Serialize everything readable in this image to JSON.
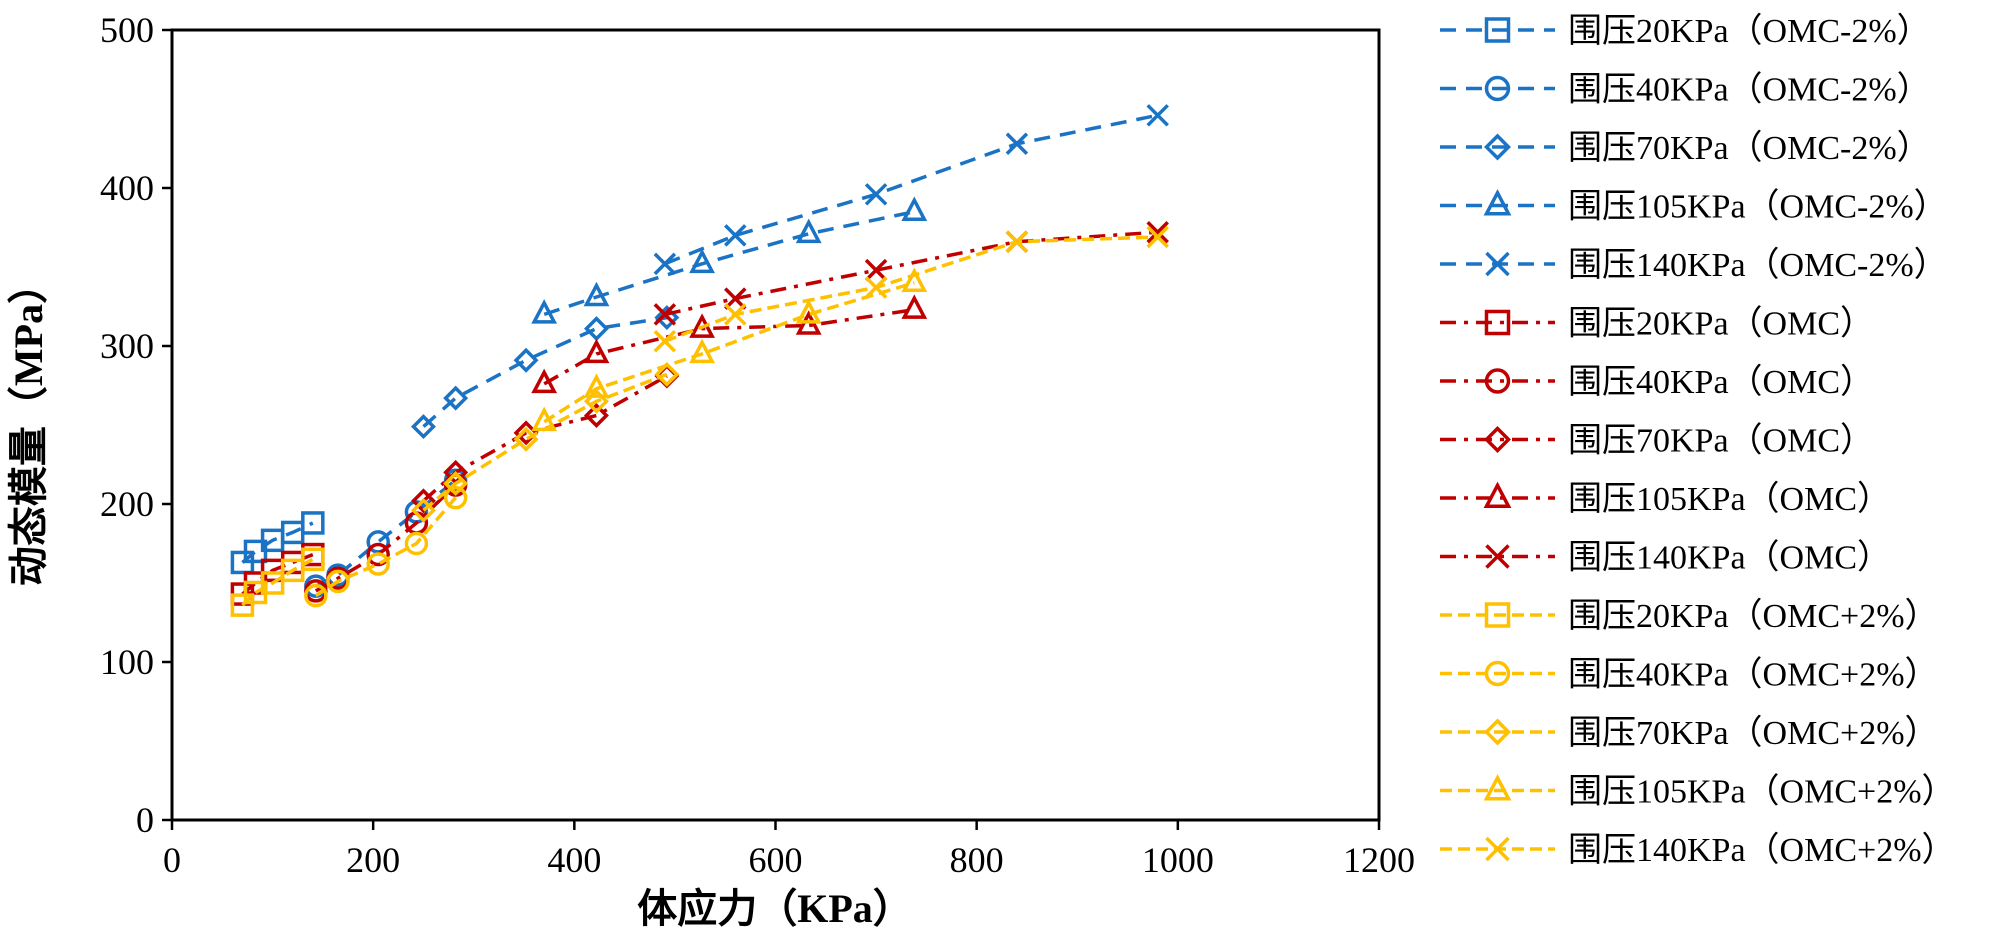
{
  "chart_data": {
    "type": "line",
    "title": "",
    "xlabel": "体应力（KPa）",
    "ylabel": "动态模量（MPa）",
    "xlim": [
      0,
      1200
    ],
    "ylim": [
      0,
      500
    ],
    "xticks": [
      "0",
      "200",
      "400",
      "600",
      "800",
      "1000",
      "1200"
    ],
    "yticks": [
      "0",
      "100",
      "200",
      "300",
      "400",
      "500"
    ],
    "legend_position": "right",
    "colors": {
      "OMC-2%": "#1a73c4",
      "OMC": "#c00000",
      "OMC+2%": "#ffc000"
    },
    "series": [
      {
        "name": "围压20KPa（OMC-2%）",
        "group": "OMC-2%",
        "marker": "square",
        "x": [
          70,
          83,
          100,
          120,
          140
        ],
        "y": [
          163,
          170,
          177,
          182,
          188
        ]
      },
      {
        "name": "围压40KPa（OMC-2%）",
        "group": "OMC-2%",
        "marker": "circle",
        "x": [
          143,
          165,
          205,
          243,
          282
        ],
        "y": [
          148,
          155,
          176,
          195,
          215
        ]
      },
      {
        "name": "围压70KPa（OMC-2%）",
        "group": "OMC-2%",
        "marker": "diamond",
        "x": [
          250,
          282,
          352,
          422,
          492
        ],
        "y": [
          249,
          267,
          291,
          311,
          318
        ]
      },
      {
        "name": "围压105KPa（OMC-2%）",
        "group": "OMC-2%",
        "marker": "triangle",
        "x": [
          370,
          422,
          527,
          633,
          738
        ],
        "y": [
          320,
          331,
          352,
          371,
          385
        ]
      },
      {
        "name": "围压140KPa（OMC-2%）",
        "group": "OMC-2%",
        "marker": "x",
        "x": [
          490,
          560,
          700,
          840,
          980
        ],
        "y": [
          352,
          370,
          396,
          428,
          446
        ]
      },
      {
        "name": "围压20KPa（OMC）",
        "group": "OMC",
        "marker": "square",
        "x": [
          70,
          83,
          100,
          120,
          140
        ],
        "y": [
          143,
          150,
          158,
          163,
          168
        ]
      },
      {
        "name": "围压40KPa（OMC）",
        "group": "OMC",
        "marker": "circle",
        "x": [
          143,
          165,
          205,
          243,
          282
        ],
        "y": [
          145,
          153,
          168,
          188,
          212
        ]
      },
      {
        "name": "围压70KPa（OMC）",
        "group": "OMC",
        "marker": "diamond",
        "x": [
          250,
          282,
          352,
          422,
          492
        ],
        "y": [
          202,
          220,
          245,
          256,
          281
        ]
      },
      {
        "name": "围压105KPa（OMC）",
        "group": "OMC",
        "marker": "triangle",
        "x": [
          370,
          422,
          527,
          633,
          738
        ],
        "y": [
          276,
          295,
          311,
          313,
          323
        ]
      },
      {
        "name": "围压140KPa（OMC）",
        "group": "OMC",
        "marker": "x",
        "x": [
          490,
          560,
          700,
          840,
          980
        ],
        "y": [
          320,
          330,
          348,
          366,
          372
        ]
      },
      {
        "name": "围压20KPa（OMC+2%）",
        "group": "OMC+2%",
        "marker": "square",
        "x": [
          70,
          83,
          100,
          120,
          140
        ],
        "y": [
          136,
          144,
          150,
          158,
          165
        ]
      },
      {
        "name": "围压40KPa（OMC+2%）",
        "group": "OMC+2%",
        "marker": "circle",
        "x": [
          143,
          165,
          205,
          243,
          282
        ],
        "y": [
          142,
          151,
          162,
          175,
          204
        ]
      },
      {
        "name": "围压70KPa（OMC+2%）",
        "group": "OMC+2%",
        "marker": "diamond",
        "x": [
          250,
          282,
          352,
          422,
          492
        ],
        "y": [
          196,
          213,
          241,
          265,
          282
        ]
      },
      {
        "name": "围压105KPa（OMC+2%）",
        "group": "OMC+2%",
        "marker": "triangle",
        "x": [
          370,
          422,
          527,
          633,
          738
        ],
        "y": [
          252,
          273,
          295,
          320,
          340
        ]
      },
      {
        "name": "围压140KPa（OMC+2%）",
        "group": "OMC+2%",
        "marker": "x",
        "x": [
          490,
          560,
          700,
          840,
          980
        ],
        "y": [
          303,
          320,
          337,
          366,
          369
        ]
      }
    ]
  }
}
